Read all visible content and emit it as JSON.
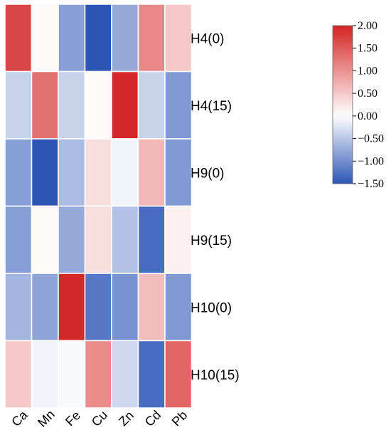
{
  "chart_data": {
    "type": "heatmap",
    "title": "",
    "xlabel": "",
    "ylabel": "",
    "columns": [
      "Ca",
      "Mn",
      "Fe",
      "Cu",
      "Zn",
      "Cd",
      "Pb"
    ],
    "rows": [
      "H4(0)",
      "H4(15)",
      "H9(0)",
      "H9(15)",
      "H10(0)",
      "H10(15)"
    ],
    "values": [
      [
        1.7,
        0.05,
        -0.85,
        -1.5,
        -0.75,
        1.1,
        0.5
      ],
      [
        -0.4,
        1.3,
        -0.4,
        0.05,
        1.95,
        -0.4,
        -0.9
      ],
      [
        -0.85,
        -1.5,
        -0.6,
        0.3,
        -0.1,
        0.65,
        -0.9
      ],
      [
        -0.85,
        0.05,
        -0.75,
        0.3,
        -0.55,
        -1.3,
        0.15
      ],
      [
        -0.65,
        -0.8,
        1.95,
        -1.2,
        -0.95,
        0.6,
        -0.9
      ],
      [
        0.5,
        -0.1,
        -0.05,
        1.05,
        -0.35,
        -1.3,
        1.4
      ]
    ],
    "colorbar": {
      "min": -1.5,
      "max": 2.0,
      "ticks": [
        2.0,
        1.5,
        1.0,
        0.5,
        0.0,
        -0.5,
        -1.0,
        -1.5
      ],
      "tick_labels": [
        "2.00",
        "1.50",
        "1.00",
        "0.50",
        "0.00",
        "−0.50",
        "−1.00",
        "−1.50"
      ],
      "color_low": "#2c55b5",
      "color_mid": "#ffffff",
      "color_high": "#d42424"
    },
    "grid_color": "#ffffff",
    "legend": "right"
  }
}
